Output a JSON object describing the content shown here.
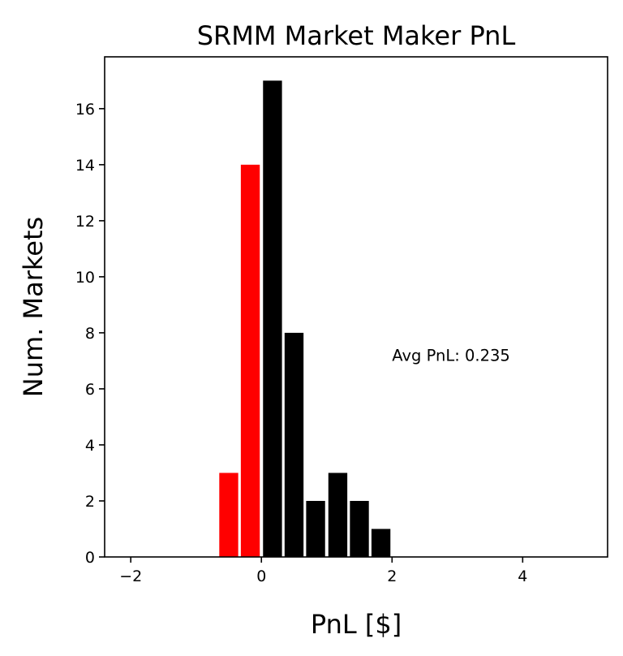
{
  "chart_data": {
    "type": "bar",
    "title": "SRMM Market Maker PnL",
    "xlabel": "PnL [$]",
    "ylabel": "Num. Markets",
    "xlim": [
      -2.4,
      5.3
    ],
    "ylim": [
      0,
      17.85
    ],
    "x_ticks": [
      -2,
      0,
      2,
      4
    ],
    "x_tick_labels": [
      "−2",
      "0",
      "2",
      "4"
    ],
    "y_ticks": [
      0,
      2,
      4,
      6,
      8,
      10,
      12,
      14,
      16
    ],
    "y_tick_labels": [
      "0",
      "2",
      "4",
      "6",
      "8",
      "10",
      "12",
      "14",
      "16"
    ],
    "bin_width": 0.33,
    "bar_width": 0.29,
    "bins": [
      {
        "x_center": -0.5,
        "value": 3,
        "color": "#ff0000"
      },
      {
        "x_center": -0.17,
        "value": 14,
        "color": "#ff0000"
      },
      {
        "x_center": 0.17,
        "value": 17,
        "color": "#000000"
      },
      {
        "x_center": 0.5,
        "value": 8,
        "color": "#000000"
      },
      {
        "x_center": 0.83,
        "value": 2,
        "color": "#000000"
      },
      {
        "x_center": 1.17,
        "value": 3,
        "color": "#000000"
      },
      {
        "x_center": 1.5,
        "value": 2,
        "color": "#000000"
      },
      {
        "x_center": 1.83,
        "value": 1,
        "color": "#000000"
      }
    ],
    "colors": {
      "negative": "#ff0000",
      "positive": "#000000"
    },
    "annotation": {
      "text": "Avg PnL: 0.235",
      "x": 2.0,
      "y": 7.0
    },
    "grid": false
  }
}
